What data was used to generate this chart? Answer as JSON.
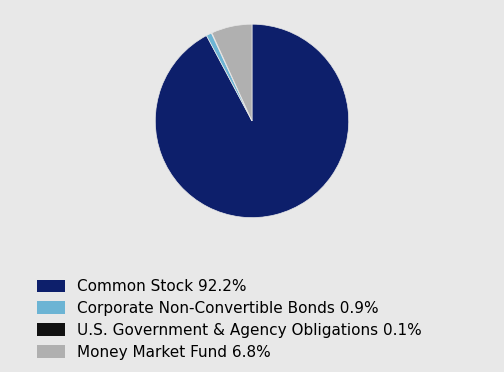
{
  "labels": [
    "Common Stock 92.2%",
    "Corporate Non-Convertible Bonds 0.9%",
    "U.S. Government & Agency Obligations 0.1%",
    "Money Market Fund 6.8%"
  ],
  "values": [
    92.2,
    0.9,
    0.1,
    6.8
  ],
  "colors": [
    "#0d1f6b",
    "#6cb4d4",
    "#111111",
    "#b0b0b0"
  ],
  "background_color": "#e8e8e8",
  "legend_fontsize": 11,
  "startangle": 90
}
